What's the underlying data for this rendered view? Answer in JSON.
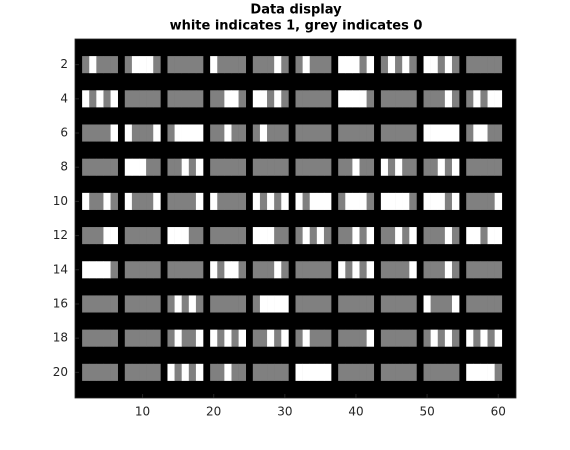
{
  "chart_data": {
    "type": "heatmap",
    "title": "Data display",
    "subtitle": "white indicates 1, grey indicates 0",
    "y": [
      2,
      4,
      6,
      8,
      10,
      12,
      14,
      16,
      18,
      20
    ],
    "values": [
      [
        0,
        1,
        0,
        0,
        0,
        0,
        1,
        1,
        1,
        0,
        0,
        0,
        0,
        0,
        0,
        1,
        0,
        0,
        0,
        0,
        0,
        0,
        0,
        1,
        0,
        0,
        1,
        0,
        0,
        0,
        1,
        1,
        1,
        0,
        1,
        0,
        1,
        0,
        1,
        0,
        1,
        1,
        0,
        1,
        0,
        0,
        0,
        0,
        0,
        0
      ],
      [
        1,
        0,
        1,
        0,
        1,
        0,
        0,
        0,
        0,
        0,
        0,
        0,
        0,
        0,
        0,
        0,
        0,
        1,
        1,
        0,
        1,
        1,
        0,
        1,
        0,
        0,
        0,
        0,
        0,
        0,
        1,
        1,
        1,
        1,
        0,
        0,
        0,
        0,
        0,
        0,
        0,
        0,
        0,
        1,
        0,
        0,
        1,
        0,
        1,
        1
      ],
      [
        0,
        0,
        0,
        0,
        1,
        1,
        0,
        0,
        0,
        1,
        0,
        1,
        1,
        1,
        1,
        0,
        0,
        1,
        0,
        0,
        0,
        1,
        0,
        0,
        0,
        0,
        0,
        0,
        0,
        0,
        0,
        0,
        0,
        0,
        0,
        0,
        0,
        0,
        0,
        0,
        1,
        1,
        1,
        1,
        1,
        0,
        1,
        1,
        0,
        0
      ],
      [
        0,
        0,
        0,
        0,
        0,
        1,
        1,
        1,
        0,
        0,
        0,
        0,
        1,
        0,
        1,
        0,
        0,
        0,
        0,
        0,
        0,
        0,
        0,
        0,
        0,
        0,
        0,
        0,
        0,
        0,
        0,
        0,
        1,
        0,
        0,
        1,
        0,
        1,
        0,
        0,
        0,
        0,
        1,
        0,
        1,
        0,
        0,
        0,
        0,
        0
      ],
      [
        1,
        0,
        0,
        1,
        0,
        1,
        0,
        0,
        0,
        1,
        0,
        0,
        0,
        0,
        1,
        1,
        0,
        0,
        0,
        0,
        1,
        0,
        1,
        0,
        1,
        1,
        0,
        1,
        1,
        1,
        0,
        1,
        1,
        1,
        0,
        1,
        1,
        1,
        1,
        0,
        1,
        1,
        1,
        0,
        1,
        0,
        0,
        0,
        0,
        1
      ],
      [
        0,
        0,
        0,
        1,
        1,
        0,
        0,
        0,
        0,
        0,
        1,
        1,
        1,
        0,
        0,
        0,
        0,
        0,
        0,
        0,
        1,
        1,
        1,
        0,
        0,
        0,
        1,
        0,
        1,
        0,
        0,
        0,
        1,
        0,
        1,
        0,
        0,
        1,
        0,
        1,
        0,
        0,
        0,
        1,
        0,
        1,
        1,
        0,
        1,
        1
      ],
      [
        1,
        1,
        1,
        1,
        0,
        0,
        0,
        0,
        0,
        0,
        0,
        0,
        0,
        0,
        0,
        1,
        0,
        1,
        1,
        0,
        0,
        0,
        0,
        1,
        0,
        0,
        0,
        0,
        0,
        0,
        1,
        0,
        1,
        0,
        1,
        0,
        0,
        0,
        0,
        1,
        0,
        0,
        0,
        1,
        0,
        0,
        0,
        0,
        0,
        0
      ],
      [
        0,
        0,
        0,
        0,
        0,
        0,
        0,
        0,
        0,
        0,
        0,
        1,
        0,
        1,
        0,
        0,
        0,
        0,
        0,
        0,
        0,
        1,
        1,
        1,
        1,
        0,
        0,
        0,
        0,
        0,
        0,
        0,
        0,
        0,
        0,
        0,
        0,
        0,
        0,
        0,
        1,
        0,
        0,
        0,
        1,
        0,
        0,
        0,
        0,
        0
      ],
      [
        0,
        0,
        0,
        0,
        0,
        0,
        0,
        0,
        0,
        0,
        0,
        1,
        0,
        0,
        1,
        1,
        0,
        1,
        0,
        1,
        0,
        0,
        1,
        0,
        1,
        0,
        1,
        0,
        0,
        0,
        0,
        0,
        0,
        0,
        1,
        0,
        0,
        0,
        0,
        0,
        0,
        1,
        0,
        1,
        0,
        1,
        0,
        1,
        0,
        1
      ],
      [
        0,
        0,
        0,
        0,
        0,
        0,
        0,
        0,
        0,
        0,
        1,
        0,
        1,
        0,
        1,
        0,
        0,
        1,
        0,
        0,
        0,
        0,
        0,
        0,
        0,
        1,
        1,
        1,
        1,
        1,
        0,
        0,
        0,
        0,
        0,
        0,
        0,
        0,
        0,
        0,
        0,
        0,
        0,
        0,
        0,
        1,
        1,
        1,
        1,
        0
      ]
    ],
    "colors": {
      "1": "#ffffff",
      "0": "#808080"
    },
    "background": "#000000",
    "xlim": [
      0.5,
      62.5
    ],
    "ylim": [
      0.5,
      21.5
    ],
    "xticks": [
      10,
      20,
      30,
      40,
      50,
      60
    ],
    "yticks": [
      2,
      4,
      6,
      8,
      10,
      12,
      14,
      16,
      18,
      20
    ]
  }
}
